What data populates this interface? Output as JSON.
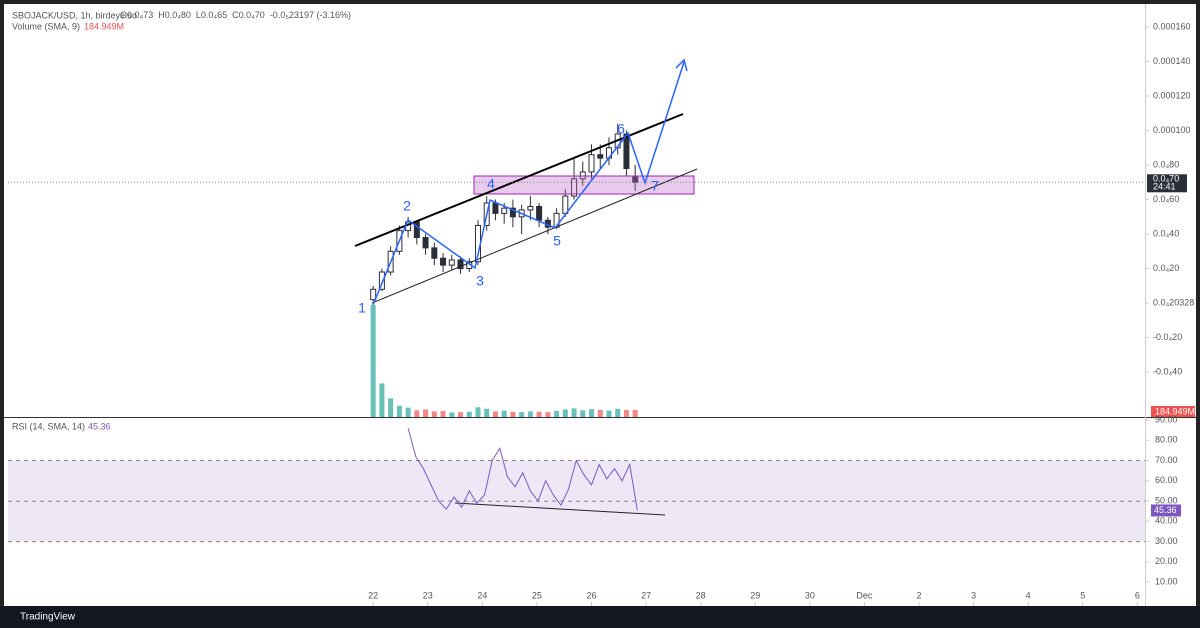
{
  "header": {
    "symbol": "SBOJACK/USD, 1h, birdeye.so",
    "items": [
      "O0.0₄73",
      "H0.0₄80",
      "L0.0₄65",
      "C0.0₄70",
      "-0.0₅23197 (-3.16%)"
    ]
  },
  "chart_data": [
    {
      "type": "candlestick",
      "color": "#2a2e39",
      "x": [
        0,
        0.16,
        0.32,
        0.48,
        0.64,
        0.8,
        0.96,
        1.12,
        1.28,
        1.44,
        1.6,
        1.76,
        1.92,
        2.08,
        2.24,
        2.4,
        2.56,
        2.72,
        2.88,
        3.04,
        3.2,
        3.36,
        3.52,
        3.68,
        3.84,
        4,
        4.16,
        4.32,
        4.48,
        4.64,
        4.8
      ],
      "open": [
        2e-06,
        8e-06,
        1.8e-05,
        3e-05,
        4.2e-05,
        4.7e-05,
        3.8e-05,
        3.2e-05,
        2.6e-05,
        2.2e-05,
        2.5e-05,
        2e-05,
        2.4e-05,
        4.5e-05,
        5.8e-05,
        5.2e-05,
        5.5e-05,
        5e-05,
        5.4e-05,
        5.6e-05,
        4.8e-05,
        4.4e-05,
        5.2e-05,
        6.2e-05,
        7.2e-05,
        7.6e-05,
        8.6e-05,
        8.4e-05,
        9e-05,
        9.8e-05,
        7.3e-05
      ],
      "high": [
        1e-05,
        2e-05,
        3.3e-05,
        4.5e-05,
        5e-05,
        4.8e-05,
        4e-05,
        3.5e-05,
        2.9e-05,
        2.8e-05,
        2.7e-05,
        2.6e-05,
        4.8e-05,
        6.2e-05,
        6e-05,
        5.8e-05,
        6e-05,
        5.7e-05,
        6.2e-05,
        5.8e-05,
        5e-05,
        5.5e-05,
        6.6e-05,
        8.4e-05,
        8.2e-05,
        9.2e-05,
        9.2e-05,
        9.6e-05,
        0.000104,
        0.0001,
        8e-05
      ],
      "low": [
        1e-06,
        7e-06,
        1.6e-05,
        2.8e-05,
        3.8e-05,
        3.4e-05,
        2.8e-05,
        2.2e-05,
        1.8e-05,
        1.9e-05,
        1.7e-05,
        1.8e-05,
        2.2e-05,
        4.2e-05,
        4.8e-05,
        4.6e-05,
        4.4e-05,
        4e-05,
        4.8e-05,
        4.4e-05,
        4e-05,
        4.3e-05,
        5e-05,
        6e-05,
        6.8e-05,
        7.2e-05,
        7.8e-05,
        8e-05,
        8.6e-05,
        7.4e-05,
        6.5e-05
      ],
      "close": [
        8e-06,
        1.8e-05,
        3e-05,
        4.2e-05,
        4.7e-05,
        3.8e-05,
        3.2e-05,
        2.6e-05,
        2.2e-05,
        2.5e-05,
        2e-05,
        2.4e-05,
        4.5e-05,
        5.8e-05,
        5.2e-05,
        5.5e-05,
        5e-05,
        5.4e-05,
        5.6e-05,
        4.8e-05,
        4.4e-05,
        5.2e-05,
        6.2e-05,
        7.2e-05,
        7.6e-05,
        8.6e-05,
        8.4e-05,
        9e-05,
        9.8e-05,
        7.8e-05,
        7e-05
      ],
      "last_price_label": "0.0₄70",
      "countdown": "24:41",
      "volume": {
        "name": "Volume (SMA, 9)",
        "up_color": "#26a69a",
        "down_color": "#ef5350",
        "values": [
          3000,
          900,
          500,
          300,
          250,
          180,
          200,
          150,
          160,
          120,
          130,
          140,
          260,
          220,
          150,
          170,
          140,
          130,
          150,
          140,
          130,
          160,
          200,
          230,
          180,
          210,
          190,
          170,
          220,
          190,
          184.949
        ],
        "value_label": "184.949M"
      },
      "xlim": [
        -6.69,
        14.14
      ],
      "xticks": [
        {
          "value": 0,
          "label": "22"
        },
        {
          "value": 1,
          "label": "23"
        },
        {
          "value": 2,
          "label": "24"
        },
        {
          "value": 3,
          "label": "25"
        },
        {
          "value": 4,
          "label": "26"
        },
        {
          "value": 5,
          "label": "27"
        },
        {
          "value": 6,
          "label": "28"
        },
        {
          "value": 7,
          "label": "29"
        },
        {
          "value": 8,
          "label": "30"
        },
        {
          "value": 9,
          "label": "Dec"
        },
        {
          "value": 10,
          "label": "2"
        },
        {
          "value": 11,
          "label": "3"
        },
        {
          "value": 12,
          "label": "4"
        },
        {
          "value": 13,
          "label": "5"
        },
        {
          "value": 14,
          "label": "6"
        }
      ],
      "ylim": [
        -6.6e-05,
        0.000171
      ],
      "yticks": [
        {
          "value": 0.00016,
          "label": "0.000160"
        },
        {
          "value": 0.00014,
          "label": "0.000140"
        },
        {
          "value": 0.00012,
          "label": "0.000120"
        },
        {
          "value": 0.0001,
          "label": "0.000100"
        },
        {
          "value": 8e-05,
          "label": "0.0₄80"
        },
        {
          "value": 6e-05,
          "label": "0.0₄60"
        },
        {
          "value": 4e-05,
          "label": "0.0₄40"
        },
        {
          "value": 2e-05,
          "label": "0.0₄20"
        },
        {
          "value": 0,
          "label": "0.0₄20328"
        },
        {
          "value": -2e-05,
          "label": "-0.0₄20"
        },
        {
          "value": -4e-05,
          "label": "-0.0₄40"
        }
      ],
      "grid": false
    },
    {
      "type": "line",
      "title": "RSI (14, SMA, 14)",
      "color": "#7e57c2",
      "band_color": "#ede7f6",
      "x": [
        0.64,
        0.78,
        0.92,
        1.06,
        1.2,
        1.34,
        1.48,
        1.62,
        1.76,
        1.9,
        2.04,
        2.18,
        2.32,
        2.46,
        2.6,
        2.74,
        2.88,
        3.02,
        3.16,
        3.3,
        3.44,
        3.58,
        3.72,
        3.86,
        4,
        4.14,
        4.28,
        4.42,
        4.56,
        4.7,
        4.84
      ],
      "values": [
        86,
        72,
        66,
        58,
        50,
        46,
        52,
        47,
        55,
        49,
        53,
        70,
        76,
        62,
        57,
        64,
        55,
        50,
        60,
        53,
        48,
        56,
        70,
        63,
        58,
        68,
        61,
        66,
        60,
        68,
        45.36
      ],
      "levels": [
        70,
        50,
        30
      ],
      "xlim": [
        -6.69,
        14.14
      ],
      "ylim": [
        -1.3,
        91
      ],
      "yticks": [
        {
          "value": 90,
          "label": "90.00"
        },
        {
          "value": 80,
          "label": "80.00"
        },
        {
          "value": 70,
          "label": "70.00"
        },
        {
          "value": 60,
          "label": "60.00"
        },
        {
          "value": 50,
          "label": "50.00"
        },
        {
          "value": 40,
          "label": "40.00"
        },
        {
          "value": 30,
          "label": "30.00"
        },
        {
          "value": 20,
          "label": "20.00"
        },
        {
          "value": 10,
          "label": "10.00"
        }
      ],
      "grid": false
    }
  ],
  "annotations": {
    "waves": [
      "1",
      "2",
      "3",
      "4",
      "5",
      "6",
      "7"
    ]
  },
  "footer": {
    "brand": "TradingView"
  }
}
